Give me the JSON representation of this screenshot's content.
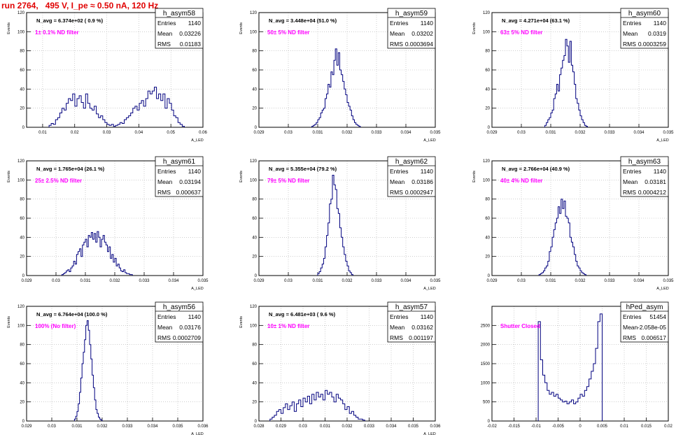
{
  "header": {
    "run_title": "run 2764,   495 V, I_pe ≈ 0.50 nA, 120 Hz"
  },
  "colors": {
    "histogram_line": "#00007f",
    "label_magenta": "#ff00ff",
    "title_red": "#e00000",
    "axis": "#000000",
    "grid": "#b0b0b0"
  },
  "chart_data": [
    {
      "type": "histogram",
      "name": "h_asym58",
      "stats": {
        "entries": "1140",
        "mean": "0.03226",
        "rms": "0.01183"
      },
      "navg_text": "N_avg = 6.374e+02 ( 0.9 %)",
      "filter_text": "1± 0.1% ND filter",
      "ylabel": "Events",
      "xlabel": "A_LED",
      "xlim": [
        0.005,
        0.06
      ],
      "ylim": [
        0,
        120
      ],
      "xticks": [
        0.01,
        0.02,
        0.03,
        0.04,
        0.05,
        0.06
      ],
      "xtick_labels": [
        "0.01",
        "0.02",
        "0.03",
        "0.04",
        "0.05",
        "0.06"
      ],
      "yticks": [
        0,
        20,
        40,
        60,
        80,
        100,
        120
      ],
      "bin_start": 0.012,
      "bin_width": 0.00067,
      "values": [
        2,
        4,
        3,
        8,
        10,
        15,
        20,
        18,
        25,
        30,
        28,
        35,
        22,
        30,
        33,
        26,
        20,
        35,
        25,
        20,
        18,
        22,
        14,
        10,
        12,
        8,
        5,
        3,
        2,
        3,
        1,
        2,
        3,
        5,
        4,
        8,
        10,
        12,
        15,
        20,
        22,
        18,
        25,
        28,
        22,
        30,
        38,
        35,
        38,
        42,
        30,
        35,
        28,
        35,
        20,
        30,
        25,
        18,
        12,
        10,
        5,
        3,
        1
      ]
    },
    {
      "type": "histogram",
      "name": "h_asym59",
      "stats": {
        "entries": "1140",
        "mean": "0.03202",
        "rms": "0.0003694"
      },
      "navg_text": "N_avg = 3.448e+04 (51.0 %)",
      "filter_text": "50± 5% ND filter",
      "ylabel": "Events",
      "xlabel": "A_LED",
      "xlim": [
        0.029,
        0.035
      ],
      "ylim": [
        0,
        120
      ],
      "xticks": [
        0.029,
        0.03,
        0.031,
        0.032,
        0.033,
        0.034,
        0.035
      ],
      "xtick_labels": [
        "0.029",
        "0.03",
        "0.031",
        "0.032",
        "0.033",
        "0.034",
        "0.035"
      ],
      "yticks": [
        0,
        20,
        40,
        60,
        80,
        100,
        120
      ],
      "bin_start": 0.0308,
      "bin_width": 5e-05,
      "values": [
        1,
        2,
        3,
        5,
        8,
        10,
        15,
        18,
        20,
        30,
        35,
        45,
        42,
        58,
        55,
        70,
        82,
        65,
        78,
        60,
        55,
        48,
        40,
        34,
        26,
        22,
        18,
        12,
        8,
        5,
        3,
        2,
        1
      ]
    },
    {
      "type": "histogram",
      "name": "h_asym60",
      "stats": {
        "entries": "1140",
        "mean": "0.0319",
        "rms": "0.0003259"
      },
      "navg_text": "N_avg = 4.271e+04 (63.1 %)",
      "filter_text": "63± 5% ND filter",
      "ylabel": "Events",
      "xlabel": "A_LED",
      "xlim": [
        0.029,
        0.035
      ],
      "ylim": [
        0,
        120
      ],
      "xticks": [
        0.029,
        0.03,
        0.031,
        0.032,
        0.033,
        0.034,
        0.035
      ],
      "xtick_labels": [
        "0.029",
        "0.03",
        "0.031",
        "0.032",
        "0.033",
        "0.034",
        "0.035"
      ],
      "yticks": [
        0,
        20,
        40,
        60,
        80,
        100,
        120
      ],
      "bin_start": 0.0308,
      "bin_width": 5e-05,
      "values": [
        2,
        5,
        8,
        10,
        15,
        18,
        30,
        35,
        45,
        38,
        55,
        62,
        70,
        75,
        92,
        85,
        68,
        90,
        65,
        58,
        45,
        30,
        25,
        18,
        12,
        8,
        5,
        2,
        1
      ]
    },
    {
      "type": "histogram",
      "name": "h_asym61",
      "stats": {
        "entries": "1140",
        "mean": "0.03194",
        "rms": "0.000637"
      },
      "navg_text": "N_avg = 1.765e+04 (26.1 %)",
      "filter_text": "25± 2.5% ND filter",
      "ylabel": "Events",
      "xlabel": "A_LED",
      "xlim": [
        0.029,
        0.035
      ],
      "ylim": [
        0,
        120
      ],
      "xticks": [
        0.029,
        0.03,
        0.031,
        0.032,
        0.033,
        0.034,
        0.035
      ],
      "xtick_labels": [
        "0.029",
        "0.03",
        "0.031",
        "0.032",
        "0.033",
        "0.034",
        "0.035"
      ],
      "yticks": [
        0,
        20,
        40,
        60,
        80,
        100,
        120
      ],
      "bin_start": 0.0302,
      "bin_width": 5e-05,
      "values": [
        1,
        2,
        3,
        5,
        6,
        4,
        8,
        10,
        15,
        12,
        22,
        25,
        28,
        20,
        32,
        35,
        38,
        30,
        42,
        40,
        45,
        38,
        44,
        35,
        46,
        40,
        30,
        38,
        42,
        35,
        32,
        25,
        30,
        18,
        22,
        14,
        18,
        10,
        12,
        8,
        5,
        4,
        6,
        3,
        2,
        2,
        1,
        1
      ]
    },
    {
      "type": "histogram",
      "name": "h_asym62",
      "stats": {
        "entries": "1140",
        "mean": "0.03186",
        "rms": "0.0002947"
      },
      "navg_text": "N_avg = 5.355e+04 (79.2 %)",
      "filter_text": "79± 5% ND filter",
      "ylabel": "Events",
      "xlabel": "A_LED",
      "xlim": [
        0.029,
        0.035
      ],
      "ylim": [
        0,
        120
      ],
      "xticks": [
        0.029,
        0.03,
        0.031,
        0.032,
        0.033,
        0.034,
        0.035
      ],
      "xtick_labels": [
        "0.029",
        "0.03",
        "0.031",
        "0.032",
        "0.033",
        "0.034",
        "0.035"
      ],
      "yticks": [
        0,
        20,
        40,
        60,
        80,
        100,
        120
      ],
      "bin_start": 0.031,
      "bin_width": 5e-05,
      "values": [
        2,
        4,
        8,
        12,
        18,
        30,
        42,
        55,
        75,
        80,
        105,
        95,
        90,
        70,
        65,
        50,
        40,
        30,
        22,
        15,
        10,
        5,
        3,
        1
      ]
    },
    {
      "type": "histogram",
      "name": "h_asym63",
      "stats": {
        "entries": "1140",
        "mean": "0.03181",
        "rms": "0.0004212"
      },
      "navg_text": "N_avg = 2.766e+04 (40.9 %)",
      "filter_text": "40± 4% ND filter",
      "ylabel": "Events",
      "xlabel": "A_LED",
      "xlim": [
        0.029,
        0.035
      ],
      "ylim": [
        0,
        120
      ],
      "xticks": [
        0.029,
        0.03,
        0.031,
        0.032,
        0.033,
        0.034,
        0.035
      ],
      "xtick_labels": [
        "0.029",
        "0.03",
        "0.031",
        "0.032",
        "0.033",
        "0.034",
        "0.035"
      ],
      "yticks": [
        0,
        20,
        40,
        60,
        80,
        100,
        120
      ],
      "bin_start": 0.0306,
      "bin_width": 5e-05,
      "values": [
        1,
        2,
        3,
        5,
        8,
        10,
        15,
        25,
        30,
        40,
        48,
        55,
        60,
        72,
        65,
        80,
        70,
        78,
        62,
        60,
        55,
        40,
        35,
        30,
        22,
        15,
        10,
        8,
        5,
        3,
        2,
        1
      ]
    },
    {
      "type": "histogram",
      "name": "h_asym56",
      "stats": {
        "entries": "1140",
        "mean": "0.03176",
        "rms": "0.0002709"
      },
      "navg_text": "N_avg = 6.764e+04 (100.0 %)",
      "filter_text": "100% (No filter)",
      "ylabel": "Events",
      "xlabel": "A_LED",
      "xlim": [
        0.029,
        0.036
      ],
      "ylim": [
        0,
        120
      ],
      "xticks": [
        0.029,
        0.03,
        0.031,
        0.032,
        0.033,
        0.034,
        0.035,
        0.036
      ],
      "xtick_labels": [
        "0.029",
        "0.03",
        "0.031",
        "0.032",
        "0.033",
        "0.034",
        "0.035",
        "0.036"
      ],
      "yticks": [
        0,
        20,
        40,
        60,
        80,
        100,
        120
      ],
      "bin_start": 0.0309,
      "bin_width": 5e-05,
      "values": [
        2,
        5,
        10,
        18,
        30,
        45,
        60,
        72,
        85,
        100,
        105,
        95,
        80,
        65,
        48,
        35,
        22,
        12,
        8,
        4,
        2,
        1
      ]
    },
    {
      "type": "histogram",
      "name": "h_asym57",
      "stats": {
        "entries": "1140",
        "mean": "0.03162",
        "rms": "0.001197"
      },
      "navg_text": "N_avg = 6.481e+03 ( 9.6 %)",
      "filter_text": "10± 1% ND filter",
      "ylabel": "Events",
      "xlabel": "A_LED",
      "xlim": [
        0.028,
        0.036
      ],
      "ylim": [
        0,
        120
      ],
      "xticks": [
        0.028,
        0.029,
        0.03,
        0.031,
        0.032,
        0.033,
        0.034,
        0.035,
        0.036
      ],
      "xtick_labels": [
        "0.028",
        "0.029",
        "0.03",
        "0.031",
        "0.032",
        "0.033",
        "0.034",
        "0.035",
        "0.036"
      ],
      "yticks": [
        0,
        20,
        40,
        60,
        80,
        100,
        120
      ],
      "bin_start": 0.0285,
      "bin_width": 0.0001,
      "values": [
        2,
        4,
        6,
        10,
        12,
        8,
        14,
        18,
        12,
        16,
        20,
        10,
        18,
        22,
        15,
        24,
        20,
        26,
        18,
        28,
        22,
        30,
        25,
        28,
        22,
        32,
        28,
        30,
        25,
        20,
        28,
        24,
        22,
        18,
        12,
        15,
        8,
        10,
        6,
        4,
        2,
        2,
        1
      ]
    },
    {
      "type": "histogram",
      "name": "hPed_asym",
      "stats": {
        "entries": "51454",
        "mean": "-2.058e-05",
        "rms": "0.006517"
      },
      "filter_text": "Shutter Closed",
      "ylabel": "",
      "xlabel": "",
      "xlim": [
        -0.02,
        0.02
      ],
      "ylim": [
        0,
        3000
      ],
      "xticks": [
        -0.02,
        -0.015,
        -0.01,
        -0.005,
        0,
        0.005,
        0.01,
        0.015,
        0.02
      ],
      "xtick_labels": [
        "-0.02",
        "-0.015",
        "-0.01",
        "-0.005",
        "0",
        "0.005",
        "0.01",
        "0.015",
        "0.02"
      ],
      "yticks": [
        0,
        500,
        1000,
        1500,
        2000,
        2500
      ],
      "bin_start": -0.0095,
      "bin_width": 0.0005,
      "values": [
        2600,
        1600,
        1200,
        1000,
        800,
        700,
        750,
        650,
        700,
        600,
        550,
        500,
        520,
        450,
        500,
        550,
        450,
        500,
        600,
        700,
        650,
        800,
        900,
        1100,
        1300,
        1500,
        1900,
        2600,
        2800
      ]
    }
  ]
}
